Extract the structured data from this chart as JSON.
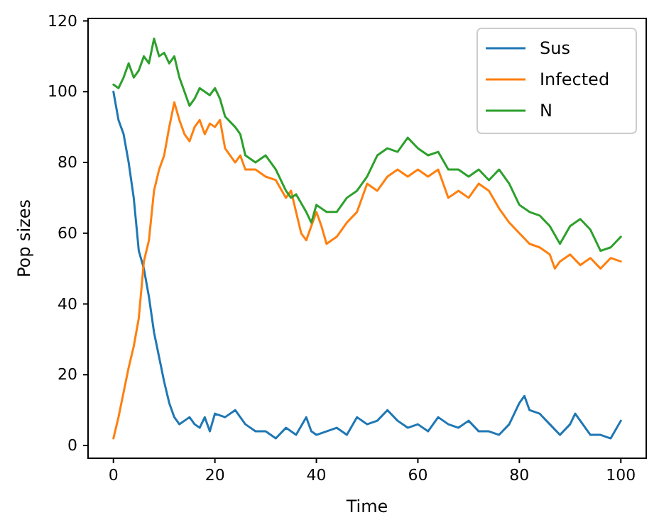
{
  "chart_data": {
    "type": "line",
    "xlabel": "Time",
    "ylabel": "Pop sizes",
    "xlim": [
      -5,
      105
    ],
    "ylim": [
      -3.6,
      120.7
    ],
    "xticks": [
      0,
      20,
      40,
      60,
      80,
      100
    ],
    "yticks": [
      0,
      20,
      40,
      60,
      80,
      100,
      120
    ],
    "legend": "top right",
    "grid": false,
    "series": [
      {
        "name": "Sus",
        "color": "#1f77b4",
        "x": [
          0,
          1,
          2,
          3,
          4,
          5,
          6,
          7,
          8,
          9,
          10,
          11,
          12,
          13,
          14,
          15,
          16,
          17,
          18,
          19,
          20,
          22,
          24,
          25,
          26,
          28,
          30,
          32,
          34,
          36,
          38,
          39,
          40,
          42,
          44,
          46,
          48,
          50,
          52,
          54,
          56,
          58,
          60,
          62,
          64,
          66,
          68,
          70,
          72,
          74,
          76,
          78,
          80,
          81,
          82,
          84,
          86,
          88,
          90,
          91,
          92,
          94,
          96,
          98,
          100
        ],
        "values": [
          100,
          92,
          88,
          80,
          70,
          55,
          50,
          42,
          32,
          25,
          18,
          12,
          8,
          6,
          7,
          8,
          6,
          5,
          8,
          4,
          9,
          8,
          10,
          8,
          6,
          4,
          4,
          2,
          5,
          3,
          8,
          4,
          3,
          4,
          5,
          3,
          8,
          6,
          7,
          10,
          7,
          5,
          6,
          4,
          8,
          6,
          5,
          7,
          4,
          4,
          3,
          6,
          12,
          14,
          10,
          9,
          6,
          3,
          6,
          9,
          7,
          3,
          3,
          2,
          7
        ]
      },
      {
        "name": "Infected",
        "color": "#ff7f0e",
        "x": [
          0,
          1,
          2,
          3,
          4,
          5,
          6,
          7,
          8,
          9,
          10,
          11,
          12,
          13,
          14,
          15,
          16,
          17,
          18,
          19,
          20,
          21,
          22,
          24,
          25,
          26,
          28,
          30,
          32,
          34,
          35,
          36,
          37,
          38,
          39,
          40,
          41,
          42,
          44,
          46,
          48,
          50,
          52,
          54,
          56,
          58,
          60,
          62,
          64,
          65,
          66,
          68,
          70,
          72,
          74,
          76,
          78,
          80,
          82,
          84,
          86,
          87,
          88,
          90,
          92,
          94,
          96,
          98,
          100
        ],
        "values": [
          2,
          8,
          15,
          22,
          28,
          36,
          52,
          58,
          72,
          78,
          82,
          90,
          97,
          92,
          88,
          86,
          90,
          92,
          88,
          91,
          90,
          92,
          84,
          80,
          82,
          78,
          78,
          76,
          75,
          70,
          72,
          66,
          60,
          58,
          62,
          66,
          62,
          57,
          59,
          63,
          66,
          74,
          72,
          76,
          78,
          76,
          78,
          76,
          78,
          74,
          70,
          72,
          70,
          74,
          72,
          67,
          63,
          60,
          57,
          56,
          54,
          50,
          52,
          54,
          51,
          53,
          50,
          53,
          52
        ]
      },
      {
        "name": "N",
        "color": "#2ca02c",
        "x": [
          0,
          1,
          2,
          3,
          4,
          5,
          6,
          7,
          8,
          9,
          10,
          11,
          12,
          13,
          14,
          15,
          16,
          17,
          18,
          19,
          20,
          21,
          22,
          24,
          25,
          26,
          28,
          30,
          32,
          34,
          35,
          36,
          38,
          39,
          40,
          42,
          44,
          46,
          48,
          50,
          52,
          54,
          56,
          58,
          60,
          62,
          64,
          66,
          68,
          70,
          72,
          74,
          76,
          78,
          80,
          82,
          84,
          86,
          88,
          90,
          92,
          94,
          96,
          98,
          100
        ],
        "values": [
          102,
          101,
          104,
          108,
          104,
          106,
          110,
          108,
          115,
          110,
          111,
          108,
          110,
          104,
          100,
          96,
          98,
          101,
          100,
          99,
          101,
          98,
          93,
          90,
          88,
          82,
          80,
          82,
          78,
          72,
          70,
          71,
          66,
          63,
          68,
          66,
          66,
          70,
          72,
          76,
          82,
          84,
          83,
          87,
          84,
          82,
          83,
          78,
          78,
          76,
          78,
          75,
          78,
          74,
          68,
          66,
          65,
          62,
          57,
          62,
          64,
          61,
          55,
          56,
          59
        ]
      }
    ]
  }
}
